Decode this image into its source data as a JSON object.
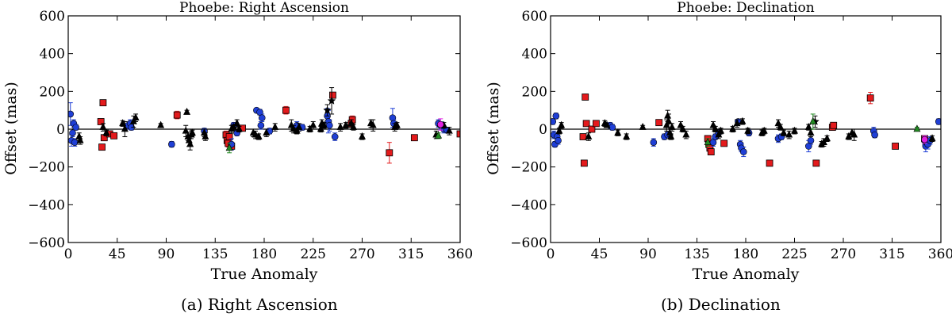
{
  "captions": [
    "(a) Right Ascension",
    "(b) Declination"
  ],
  "chart_data": [
    {
      "type": "scatter",
      "title": "Phoebe: Right Ascension",
      "xlabel": "True Anomaly",
      "ylabel": "Offset (mas)",
      "xlim": [
        0,
        360
      ],
      "ylim": [
        -600,
        600
      ],
      "xticks": [
        0,
        45,
        90,
        135,
        180,
        225,
        270,
        315,
        360
      ],
      "yticks": [
        -600,
        -400,
        -200,
        0,
        200,
        400,
        600
      ],
      "grid": false,
      "reference_line_y": 0,
      "series": [
        {
          "marker": "square",
          "color": "#e41a1c",
          "points": [
            [
              30,
              40,
              15
            ],
            [
              31,
              -95,
              12
            ],
            [
              32,
              140,
              10
            ],
            [
              33,
              -45,
              12
            ],
            [
              38,
              -25,
              10
            ],
            [
              42,
              -35,
              10
            ],
            [
              100,
              75,
              20
            ],
            [
              145,
              -30,
              20
            ],
            [
              146,
              -60,
              25
            ],
            [
              147,
              -75,
              20
            ],
            [
              148,
              -40,
              15
            ],
            [
              150,
              -90,
              20
            ],
            [
              160,
              5,
              15
            ],
            [
              200,
              100,
              20
            ],
            [
              243,
              180,
              15
            ],
            [
              260,
              30,
              20
            ],
            [
              261,
              50,
              20
            ],
            [
              295,
              -125,
              55
            ],
            [
              318,
              -45,
              10
            ],
            [
              360,
              -25,
              10
            ]
          ]
        },
        {
          "marker": "circle",
          "color": "#1f3fd6",
          "points": [
            [
              2,
              80,
              60
            ],
            [
              3,
              -60,
              30
            ],
            [
              4,
              -20,
              20
            ],
            [
              5,
              30,
              20
            ],
            [
              6,
              -70,
              20
            ],
            [
              7,
              10,
              15
            ],
            [
              55,
              20,
              20
            ],
            [
              57,
              30,
              20
            ],
            [
              58,
              10,
              15
            ],
            [
              95,
              -80,
              15
            ],
            [
              125,
              -10,
              15
            ],
            [
              150,
              -80,
              30
            ],
            [
              152,
              20,
              15
            ],
            [
              155,
              -20,
              15
            ],
            [
              173,
              100,
              10
            ],
            [
              176,
              90,
              15
            ],
            [
              177,
              20,
              20
            ],
            [
              178,
              60,
              20
            ],
            [
              185,
              -10,
              15
            ],
            [
              210,
              20,
              20
            ],
            [
              215,
              10,
              15
            ],
            [
              238,
              70,
              40
            ],
            [
              239,
              40,
              60
            ],
            [
              240,
              20,
              30
            ],
            [
              245,
              -40,
              20
            ],
            [
              298,
              60,
              50
            ],
            [
              299,
              30,
              20
            ],
            [
              340,
              30,
              20
            ],
            [
              342,
              20,
              20
            ],
            [
              345,
              0,
              20
            ],
            [
              348,
              -5,
              15
            ]
          ]
        },
        {
          "marker": "triangle",
          "color": "#000000",
          "points": [
            [
              10,
              -40,
              20
            ],
            [
              11,
              -60,
              20
            ],
            [
              32,
              10,
              20
            ],
            [
              35,
              -20,
              15
            ],
            [
              50,
              30,
              15
            ],
            [
              52,
              0,
              40
            ],
            [
              60,
              40,
              30
            ],
            [
              62,
              60,
              20
            ],
            [
              85,
              20,
              10
            ],
            [
              108,
              -10,
              30
            ],
            [
              109,
              90,
              10
            ],
            [
              110,
              -40,
              20
            ],
            [
              111,
              -60,
              30
            ],
            [
              112,
              -80,
              30
            ],
            [
              113,
              -30,
              20
            ],
            [
              114,
              -20,
              15
            ],
            [
              125,
              -20,
              20
            ],
            [
              126,
              -40,
              20
            ],
            [
              150,
              0,
              20
            ],
            [
              152,
              10,
              15
            ],
            [
              155,
              30,
              20
            ],
            [
              157,
              0,
              15
            ],
            [
              170,
              -20,
              20
            ],
            [
              172,
              -30,
              20
            ],
            [
              175,
              -40,
              15
            ],
            [
              182,
              -20,
              20
            ],
            [
              190,
              10,
              20
            ],
            [
              205,
              20,
              30
            ],
            [
              207,
              0,
              20
            ],
            [
              210,
              -10,
              15
            ],
            [
              212,
              10,
              20
            ],
            [
              222,
              0,
              15
            ],
            [
              225,
              20,
              20
            ],
            [
              232,
              0,
              15
            ],
            [
              233,
              30,
              20
            ],
            [
              235,
              20,
              15
            ],
            [
              250,
              10,
              20
            ],
            [
              255,
              20,
              15
            ],
            [
              260,
              30,
              20
            ],
            [
              262,
              10,
              15
            ],
            [
              270,
              -40,
              15
            ],
            [
              278,
              30,
              20
            ],
            [
              280,
              20,
              30
            ],
            [
              300,
              10,
              20
            ],
            [
              302,
              20,
              15
            ],
            [
              338,
              -30,
              20
            ],
            [
              345,
              20,
              15
            ],
            [
              350,
              -10,
              20
            ]
          ]
        },
        {
          "marker": "star",
          "color": "#000000",
          "points": [
            [
              242,
              150,
              70
            ],
            [
              238,
              100,
              30
            ]
          ]
        },
        {
          "marker": "triangle",
          "color": "#228b22",
          "points": [
            [
              148,
              -100,
              25
            ],
            [
              340,
              -35,
              15
            ]
          ]
        },
        {
          "marker": "circle",
          "color": "#e020e0",
          "points": [
            [
              342,
              25,
              30
            ]
          ]
        }
      ]
    },
    {
      "type": "scatter",
      "title": "Phoebe: Declination",
      "xlabel": "True Anomaly",
      "ylabel": "Offset (mas)",
      "xlim": [
        0,
        360
      ],
      "ylim": [
        -600,
        600
      ],
      "xticks": [
        0,
        45,
        90,
        135,
        180,
        225,
        270,
        315,
        360
      ],
      "yticks": [
        -600,
        -400,
        -200,
        0,
        200,
        400,
        600
      ],
      "grid": false,
      "reference_line_y": 0,
      "series": [
        {
          "marker": "square",
          "color": "#e41a1c",
          "points": [
            [
              30,
              -40,
              12
            ],
            [
              31,
              -180,
              10
            ],
            [
              32,
              170,
              10
            ],
            [
              33,
              30,
              15
            ],
            [
              38,
              0,
              15
            ],
            [
              42,
              30,
              10
            ],
            [
              100,
              35,
              10
            ],
            [
              145,
              -50,
              15
            ],
            [
              146,
              -80,
              20
            ],
            [
              147,
              -100,
              20
            ],
            [
              148,
              -120,
              15
            ],
            [
              160,
              -75,
              15
            ],
            [
              202,
              -180,
              10
            ],
            [
              245,
              -180,
              10
            ],
            [
              260,
              10,
              15
            ],
            [
              261,
              20,
              15
            ],
            [
              295,
              165,
              30
            ],
            [
              318,
              -90,
              10
            ],
            [
              345,
              -50,
              10
            ]
          ]
        },
        {
          "marker": "circle",
          "color": "#1f3fd6",
          "points": [
            [
              2,
              40,
              15
            ],
            [
              3,
              -30,
              20
            ],
            [
              4,
              -80,
              15
            ],
            [
              5,
              70,
              15
            ],
            [
              6,
              -40,
              20
            ],
            [
              7,
              -60,
              20
            ],
            [
              55,
              20,
              15
            ],
            [
              57,
              10,
              15
            ],
            [
              95,
              -70,
              20
            ],
            [
              105,
              -40,
              15
            ],
            [
              108,
              -30,
              15
            ],
            [
              150,
              -70,
              20
            ],
            [
              152,
              -40,
              15
            ],
            [
              155,
              -20,
              15
            ],
            [
              173,
              40,
              10
            ],
            [
              175,
              -80,
              20
            ],
            [
              176,
              -100,
              20
            ],
            [
              178,
              -120,
              25
            ],
            [
              183,
              -20,
              15
            ],
            [
              210,
              -50,
              20
            ],
            [
              213,
              -40,
              15
            ],
            [
              238,
              -90,
              30
            ],
            [
              240,
              -60,
              20
            ],
            [
              298,
              -10,
              20
            ],
            [
              299,
              -30,
              15
            ],
            [
              345,
              -60,
              20
            ],
            [
              346,
              -90,
              30
            ],
            [
              347,
              -70,
              20
            ],
            [
              348,
              -80,
              25
            ],
            [
              350,
              -60,
              20
            ],
            [
              358,
              40,
              15
            ]
          ]
        },
        {
          "marker": "triangle",
          "color": "#000000",
          "points": [
            [
              8,
              -10,
              15
            ],
            [
              10,
              20,
              15
            ],
            [
              35,
              -40,
              20
            ],
            [
              50,
              30,
              15
            ],
            [
              52,
              20,
              10
            ],
            [
              62,
              -20,
              15
            ],
            [
              70,
              -40,
              15
            ],
            [
              85,
              10,
              10
            ],
            [
              107,
              20,
              30
            ],
            [
              108,
              70,
              30
            ],
            [
              109,
              40,
              40
            ],
            [
              110,
              -20,
              20
            ],
            [
              111,
              -40,
              15
            ],
            [
              112,
              10,
              20
            ],
            [
              120,
              20,
              20
            ],
            [
              122,
              0,
              15
            ],
            [
              125,
              -30,
              20
            ],
            [
              150,
              20,
              20
            ],
            [
              152,
              0,
              15
            ],
            [
              155,
              -30,
              20
            ],
            [
              157,
              -10,
              15
            ],
            [
              168,
              0,
              15
            ],
            [
              172,
              30,
              20
            ],
            [
              177,
              40,
              15
            ],
            [
              182,
              -10,
              15
            ],
            [
              195,
              -20,
              15
            ],
            [
              197,
              -10,
              15
            ],
            [
              210,
              30,
              20
            ],
            [
              212,
              10,
              15
            ],
            [
              215,
              -20,
              15
            ],
            [
              220,
              -30,
              20
            ],
            [
              225,
              -10,
              15
            ],
            [
              238,
              10,
              15
            ],
            [
              240,
              -20,
              20
            ],
            [
              250,
              -80,
              15
            ],
            [
              252,
              -70,
              20
            ],
            [
              255,
              -50,
              15
            ],
            [
              275,
              -40,
              15
            ],
            [
              278,
              -20,
              20
            ],
            [
              280,
              -30,
              30
            ],
            [
              352,
              -50,
              15
            ]
          ]
        },
        {
          "marker": "star",
          "color": "#000000",
          "points": [
            [
              244,
              40,
              30
            ]
          ]
        },
        {
          "marker": "triangle",
          "color": "#228b22",
          "points": [
            [
              145,
              -70,
              20
            ],
            [
              242,
              40,
              40
            ],
            [
              338,
              0,
              10
            ]
          ]
        },
        {
          "marker": "circle",
          "color": "#e020e0",
          "points": [
            [
              345,
              -55,
              20
            ]
          ]
        }
      ]
    }
  ]
}
